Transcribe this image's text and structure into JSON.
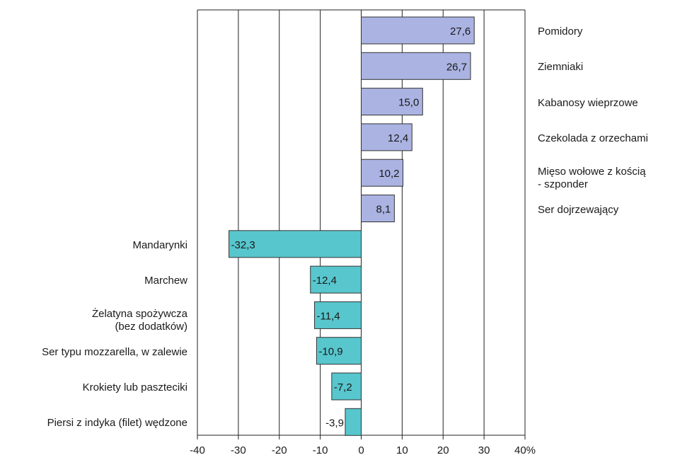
{
  "chart_data": {
    "type": "bar",
    "orientation": "horizontal",
    "categories": [
      "Pomidory",
      "Ziemniaki",
      "Kabanosy wieprzowe",
      "Czekolada z orzechami",
      "Mięso wołowe z kością\n- szponder",
      "Ser dojrzewający",
      "Mandarynki",
      "Marchew",
      "Żelatyna spożywcza\n(bez dodatków)",
      "Ser typu mozzarella, w zalewie",
      "Krokiety lub paszteciki",
      "Piersi z indyka (filet) wędzone"
    ],
    "values": [
      27.6,
      26.7,
      15.0,
      12.4,
      10.2,
      8.1,
      -32.3,
      -12.4,
      -11.4,
      -10.9,
      -7.2,
      -3.9
    ],
    "value_labels": [
      "27,6",
      "26,7",
      "15,0",
      "12,4",
      "10,2",
      "8,1",
      "-32,3",
      "-12,4",
      "-11,4",
      "-10,9",
      "-7,2",
      "-3,9"
    ],
    "colors": {
      "positive": "#aab3e2",
      "negative": "#58c6cd"
    },
    "xlim": [
      -40,
      40
    ],
    "xticks": [
      -40,
      -30,
      -20,
      -10,
      0,
      10,
      20,
      30,
      {
        "value": 40,
        "label": "40%"
      }
    ],
    "grid": true
  }
}
